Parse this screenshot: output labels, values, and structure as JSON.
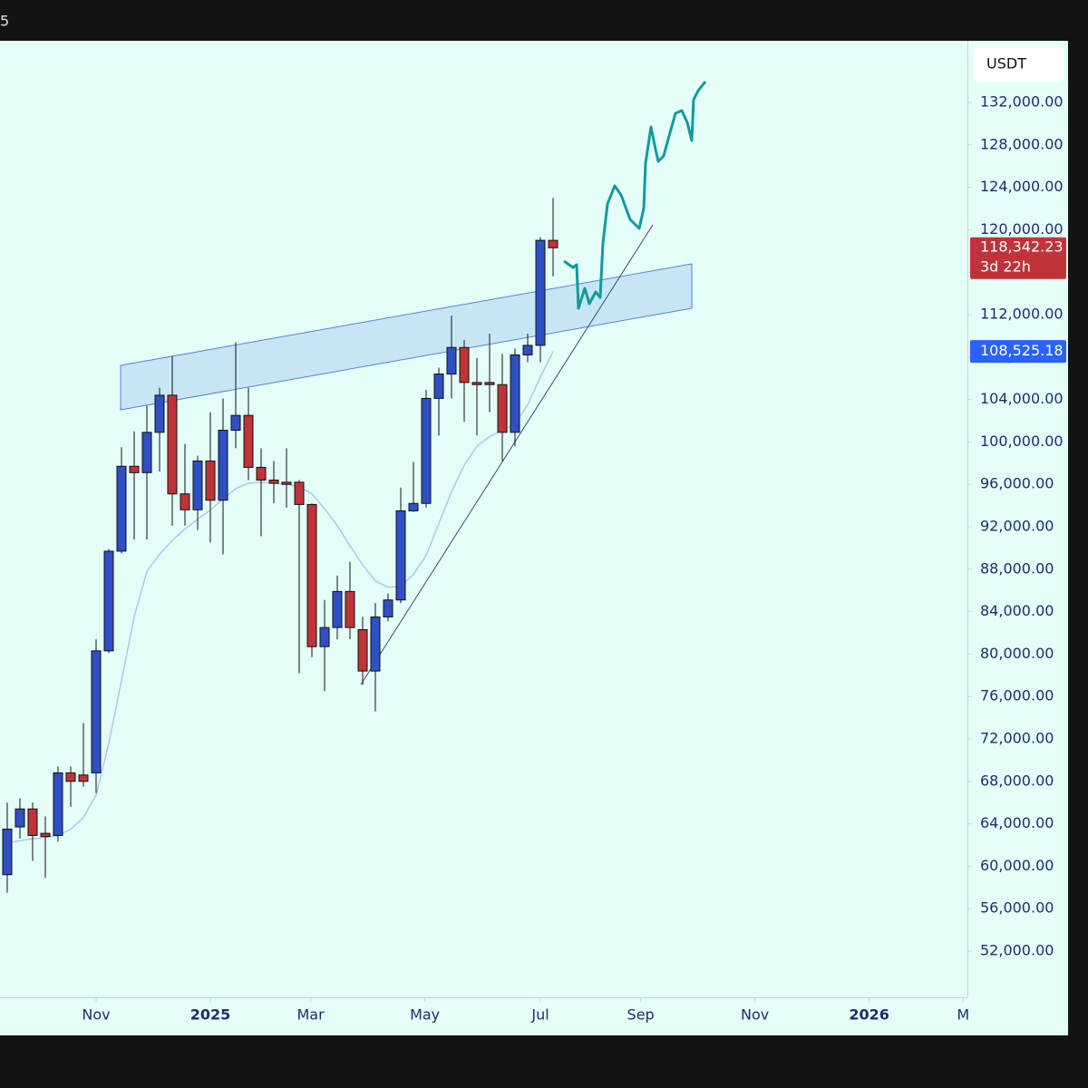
{
  "header_fragment": "5",
  "currency_button": "USDT",
  "chart_data": {
    "type": "candlestick",
    "x": [
      0,
      1,
      2,
      3,
      4,
      5,
      6,
      7,
      8,
      9,
      10,
      11,
      12,
      13,
      14,
      15,
      16,
      17,
      18,
      19,
      20,
      21,
      22,
      23,
      24,
      25,
      26,
      27,
      28,
      29,
      30,
      31,
      32,
      33,
      34,
      35,
      36,
      37,
      38,
      39,
      40,
      41,
      42,
      43
    ],
    "open": [
      59200,
      63700,
      65400,
      63100,
      62900,
      68800,
      68600,
      68800,
      80300,
      89700,
      97700,
      97100,
      100900,
      104400,
      95100,
      93600,
      98200,
      94500,
      101100,
      102500,
      97600,
      96400,
      96200,
      96200,
      94100,
      80700,
      82500,
      85900,
      82300,
      78400,
      83500,
      85100,
      93500,
      94200,
      104100,
      106400,
      108900,
      105600,
      105600,
      105400,
      100900,
      108200,
      109100,
      119000
    ],
    "high": [
      66000,
      66400,
      66000,
      64700,
      69400,
      69400,
      73500,
      81400,
      89900,
      99500,
      101000,
      103400,
      105100,
      108100,
      99800,
      98700,
      102800,
      104100,
      109400,
      105100,
      99400,
      98200,
      99400,
      96400,
      94200,
      85100,
      87400,
      88700,
      83500,
      84800,
      85700,
      95700,
      98100,
      104900,
      107000,
      111900,
      109600,
      107900,
      110200,
      108300,
      108800,
      110200,
      119300,
      123000
    ],
    "low": [
      57500,
      62600,
      60500,
      58900,
      62300,
      65600,
      67500,
      66900,
      80100,
      89500,
      90800,
      90800,
      97200,
      92100,
      92100,
      91700,
      90500,
      89400,
      99400,
      96400,
      91100,
      94200,
      93800,
      78200,
      79700,
      76500,
      81400,
      81400,
      77100,
      74600,
      83100,
      84800,
      93400,
      93800,
      100600,
      104100,
      101900,
      100600,
      102800,
      98200,
      99600,
      107500,
      107500,
      115600
    ],
    "close": [
      63500,
      65400,
      62900,
      62800,
      68800,
      68000,
      68000,
      80300,
      89700,
      97700,
      97100,
      100900,
      104400,
      95100,
      93600,
      98200,
      94500,
      101100,
      102500,
      97600,
      96400,
      96100,
      96000,
      94100,
      80700,
      82500,
      85900,
      82500,
      78400,
      83500,
      85100,
      93500,
      94200,
      104100,
      106400,
      108900,
      105600,
      105400,
      105400,
      100900,
      108200,
      109100,
      119000,
      118300
    ],
    "up_color": "#2f4fc4",
    "down_color": "#bf3438",
    "moving_average": {
      "color": "#aec6ea",
      "values": [
        62200,
        62400,
        62600,
        62700,
        62900,
        63500,
        64600,
        66700,
        71600,
        77500,
        83500,
        87800,
        89400,
        90700,
        91800,
        92700,
        93600,
        94600,
        95600,
        96100,
        96200,
        96100,
        96000,
        95800,
        95100,
        93700,
        92100,
        90200,
        88400,
        86900,
        86300,
        86400,
        87500,
        89300,
        92300,
        95300,
        97800,
        99600,
        100500,
        101100,
        101700,
        103500,
        106100,
        108525.18
      ]
    },
    "xlim": [
      -0.57,
      75.64
    ],
    "xticks": [
      {
        "value": 7,
        "label": "Nov"
      },
      {
        "value": 16,
        "label": "2025"
      },
      {
        "value": 23.9,
        "label": "Mar"
      },
      {
        "value": 32.9,
        "label": "May"
      },
      {
        "value": 42,
        "label": "Jul"
      },
      {
        "value": 49.9,
        "label": "Sep"
      },
      {
        "value": 58.9,
        "label": "Nov"
      },
      {
        "value": 67.9,
        "label": "2026"
      },
      {
        "value": 75.3,
        "label": "M"
      }
    ],
    "ylim": [
      47640,
      137810
    ],
    "yticks": [
      {
        "value": 52000,
        "label": "52,000.00"
      },
      {
        "value": 56000,
        "label": "56,000.00"
      },
      {
        "value": 60000,
        "label": "60,000.00"
      },
      {
        "value": 64000,
        "label": "64,000.00"
      },
      {
        "value": 68000,
        "label": "68,000.00"
      },
      {
        "value": 72000,
        "label": "72,000.00"
      },
      {
        "value": 76000,
        "label": "76,000.00"
      },
      {
        "value": 80000,
        "label": "80,000.00"
      },
      {
        "value": 84000,
        "label": "84,000.00"
      },
      {
        "value": 88000,
        "label": "88,000.00"
      },
      {
        "value": 92000,
        "label": "92,000.00"
      },
      {
        "value": 96000,
        "label": "96,000.00"
      },
      {
        "value": 100000,
        "label": "100,000.00"
      },
      {
        "value": 104000,
        "label": "104,000.00"
      },
      {
        "value": 108000,
        "label": "108,000.00"
      },
      {
        "value": 112000,
        "label": "112,000.00"
      },
      {
        "value": 116000,
        "label": "116,000.00"
      },
      {
        "value": 120000,
        "label": "120,000.00"
      },
      {
        "value": 124000,
        "label": "124,000.00"
      },
      {
        "value": 128000,
        "label": "128,000.00"
      },
      {
        "value": 132000,
        "label": "132,000.00"
      }
    ],
    "last_price": {
      "value": 118342.23,
      "label": "118,342.23",
      "countdown": "3d 22h",
      "color": "#c0333a"
    },
    "ma_price": {
      "value": 108525.18,
      "label": "108,525.18",
      "color": "#2962ff"
    }
  }
}
